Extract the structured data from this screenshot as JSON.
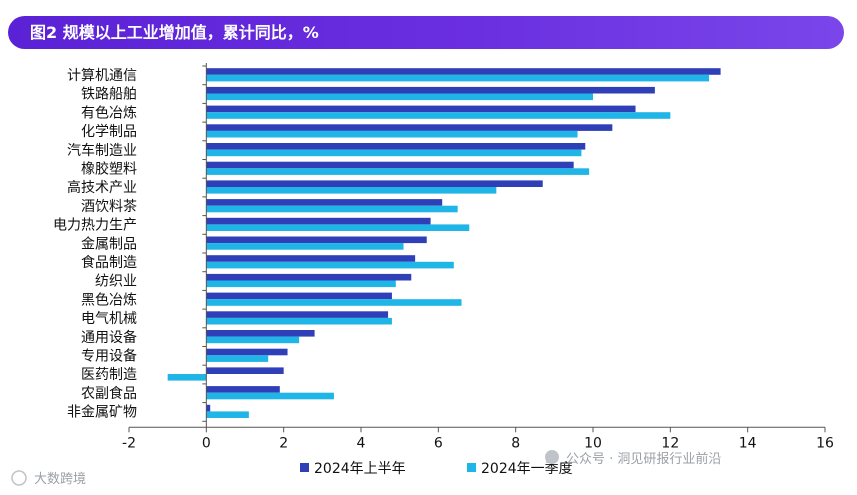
{
  "header": {
    "title": "图2 规模以上工业增加值，累计同比，%"
  },
  "chart_data": {
    "type": "bar",
    "orientation": "horizontal",
    "title": "图2 规模以上工业增加值，累计同比，%",
    "xlim": [
      -2,
      16
    ],
    "xticks": [
      -2,
      0,
      2,
      4,
      6,
      8,
      10,
      12,
      14,
      16
    ],
    "categories": [
      "计算机通信",
      "铁路船舶",
      "有色冶炼",
      "化学制品",
      "汽车制造业",
      "橡胶塑料",
      "高技术产业",
      "酒饮料茶",
      "电力热力生产",
      "金属制品",
      "食品制造",
      "纺织业",
      "黑色冶炼",
      "电气机械",
      "通用设备",
      "专用设备",
      "医药制造",
      "农副食品",
      "非金属矿物"
    ],
    "series": [
      {
        "name": "2024年上半年",
        "color": "#2e3fb8",
        "values": [
          13.3,
          11.6,
          11.1,
          10.5,
          9.8,
          9.5,
          8.7,
          6.1,
          5.8,
          5.7,
          5.4,
          5.3,
          4.8,
          4.7,
          2.8,
          2.1,
          2.0,
          1.9,
          0.1
        ]
      },
      {
        "name": "2024年一季度",
        "color": "#1fb5e6",
        "values": [
          13.0,
          10.0,
          12.0,
          9.6,
          9.7,
          9.9,
          7.5,
          6.5,
          6.8,
          5.1,
          6.4,
          4.9,
          6.6,
          4.8,
          2.4,
          1.6,
          -1.0,
          3.3,
          1.1
        ]
      }
    ],
    "legend_position": "bottom",
    "grid": false
  },
  "watermarks": {
    "left": "大数跨境",
    "right": "公众号 · 洞见研报行业前沿"
  }
}
